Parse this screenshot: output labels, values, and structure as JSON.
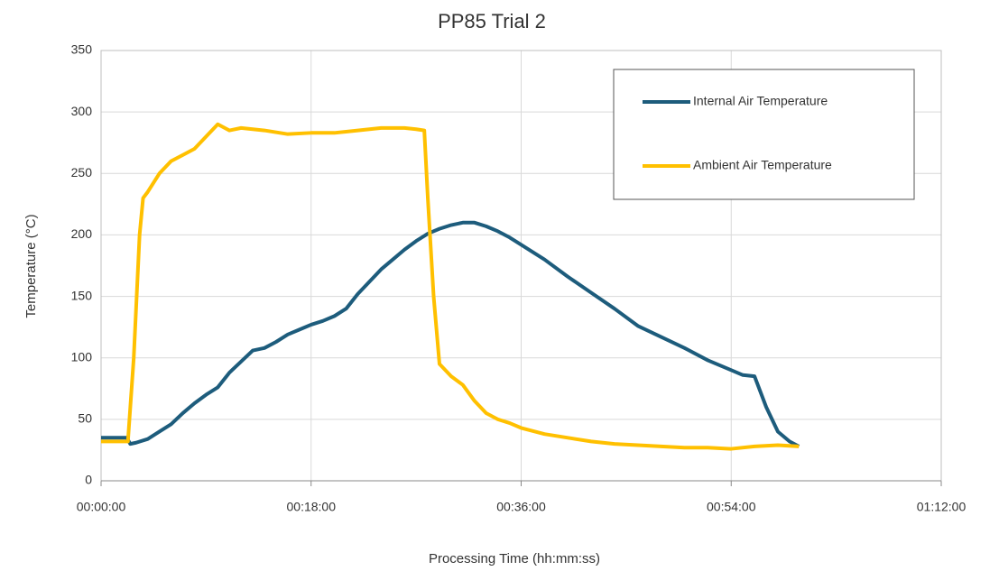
{
  "chart_data": {
    "type": "line",
    "title": "PP85 Trial 2",
    "xlabel": "Processing Time (hh:mm:ss)",
    "ylabel": "Temperature (°C)",
    "xlim": [
      0,
      72
    ],
    "xticks": [
      {
        "value": 0,
        "label": "00:00:00"
      },
      {
        "value": 18,
        "label": "00:18:00"
      },
      {
        "value": 36,
        "label": "00:36:00"
      },
      {
        "value": 54,
        "label": "00:54:00"
      },
      {
        "value": 72,
        "label": "01:12:00"
      }
    ],
    "ylim": [
      0,
      350
    ],
    "yticks": [
      0,
      50,
      100,
      150,
      200,
      250,
      300,
      350
    ],
    "grid": true,
    "legend": "upper right",
    "series": [
      {
        "name": "Internal Air Temperature",
        "color": "#1d5c7c",
        "x": [
          0,
          2.2,
          2.5,
          3,
          4,
          5,
          6,
          7,
          8,
          9,
          10,
          11,
          12,
          13,
          14,
          15,
          16,
          17,
          18,
          19,
          20,
          21,
          22,
          23,
          24,
          25,
          26,
          27,
          28,
          29,
          30,
          31,
          32,
          33,
          34,
          35,
          36,
          38,
          40,
          42,
          44,
          46,
          48,
          50,
          52,
          54,
          55,
          56,
          57,
          58,
          59,
          59.8
        ],
        "values": [
          35,
          35,
          30,
          31,
          34,
          40,
          46,
          55,
          63,
          70,
          76,
          88,
          97,
          106,
          108,
          113,
          119,
          123,
          127,
          130,
          134,
          140,
          152,
          162,
          172,
          180,
          188,
          195,
          201,
          205,
          208,
          210,
          210,
          207,
          203,
          198,
          192,
          180,
          166,
          153,
          140,
          126,
          117,
          108,
          98,
          90,
          86,
          85,
          60,
          40,
          32,
          28
        ]
      },
      {
        "name": "Ambient Air Temperature",
        "color": "#ffc000",
        "x": [
          0,
          2.3,
          2.8,
          3.3,
          3.6,
          4,
          5,
          6,
          7,
          8,
          9,
          10,
          11,
          12,
          14,
          16,
          18,
          20,
          22,
          24,
          26,
          27,
          27.7,
          28,
          28.5,
          29,
          30,
          31,
          32,
          33,
          34,
          35,
          36,
          38,
          40,
          42,
          44,
          46,
          48,
          50,
          52,
          54,
          56,
          58,
          59.8
        ],
        "values": [
          32,
          32,
          100,
          200,
          230,
          235,
          250,
          260,
          265,
          270,
          280,
          290,
          285,
          287,
          285,
          282,
          283,
          283,
          285,
          287,
          287,
          286,
          285,
          230,
          150,
          95,
          85,
          78,
          65,
          55,
          50,
          47,
          43,
          38,
          35,
          32,
          30,
          29,
          28,
          27,
          27,
          26,
          28,
          29,
          28
        ]
      }
    ]
  }
}
